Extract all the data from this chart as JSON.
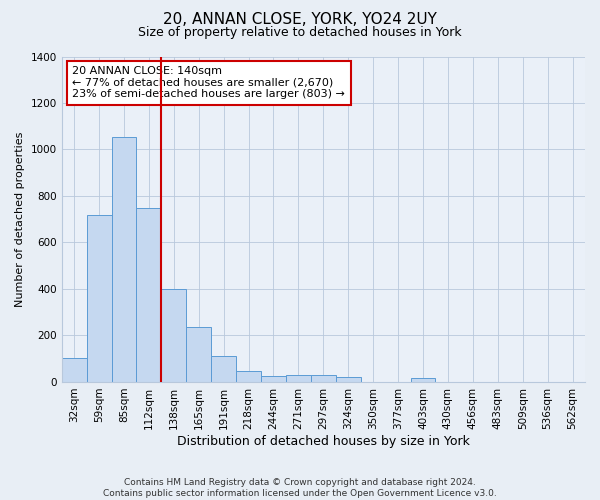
{
  "title": "20, ANNAN CLOSE, YORK, YO24 2UY",
  "subtitle": "Size of property relative to detached houses in York",
  "xlabel": "Distribution of detached houses by size in York",
  "ylabel": "Number of detached properties",
  "categories": [
    "32sqm",
    "59sqm",
    "85sqm",
    "112sqm",
    "138sqm",
    "165sqm",
    "191sqm",
    "218sqm",
    "244sqm",
    "271sqm",
    "297sqm",
    "324sqm",
    "350sqm",
    "377sqm",
    "403sqm",
    "430sqm",
    "456sqm",
    "483sqm",
    "509sqm",
    "536sqm",
    "562sqm"
  ],
  "values": [
    105,
    720,
    1055,
    750,
    400,
    235,
    110,
    45,
    25,
    30,
    30,
    20,
    0,
    0,
    18,
    0,
    0,
    0,
    0,
    0,
    0
  ],
  "bar_color": "#c5d8f0",
  "bar_edge_color": "#5b9bd5",
  "vline_x_index": 3.5,
  "vline_color": "#cc0000",
  "annotation_text": "20 ANNAN CLOSE: 140sqm\n← 77% of detached houses are smaller (2,670)\n23% of semi-detached houses are larger (803) →",
  "annotation_box_color": "#ffffff",
  "annotation_box_edge_color": "#cc0000",
  "ylim": [
    0,
    1400
  ],
  "yticks": [
    0,
    200,
    400,
    600,
    800,
    1000,
    1200,
    1400
  ],
  "footer": "Contains HM Land Registry data © Crown copyright and database right 2024.\nContains public sector information licensed under the Open Government Licence v3.0.",
  "bg_color": "#e8eef5",
  "plot_bg_color": "#eaf0f8",
  "title_fontsize": 11,
  "subtitle_fontsize": 9,
  "xlabel_fontsize": 9,
  "ylabel_fontsize": 8,
  "tick_fontsize": 7.5,
  "footer_fontsize": 6.5,
  "annotation_fontsize": 8
}
